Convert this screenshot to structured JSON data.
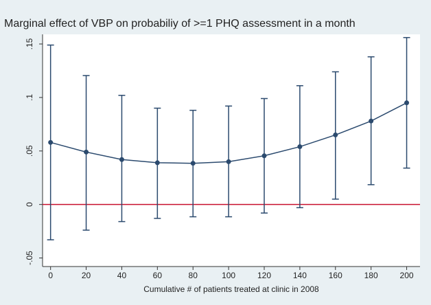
{
  "chart_data": {
    "type": "errorbar_line",
    "title": "Marginal effect of VBP on probabiliy of >=1 PHQ assessment in a month",
    "x_label": "Cumulative # of patients treated at clinic in 2008",
    "x": [
      0,
      20,
      40,
      60,
      80,
      100,
      120,
      140,
      160,
      180,
      200
    ],
    "series": [
      {
        "color": "#2b4a6e",
        "values": [
          0.058,
          0.049,
          0.042,
          0.039,
          0.0385,
          0.04,
          0.0455,
          0.054,
          0.065,
          0.078,
          0.095
        ],
        "lower": [
          -0.033,
          -0.024,
          -0.016,
          -0.013,
          -0.0115,
          -0.0115,
          -0.008,
          -0.003,
          0.005,
          0.0185,
          0.034
        ],
        "upper": [
          0.149,
          0.1205,
          0.102,
          0.09,
          0.088,
          0.092,
          0.099,
          0.111,
          0.124,
          0.138,
          0.156
        ]
      }
    ],
    "reference_line": {
      "value": 0,
      "color": "#c8102e"
    },
    "xlim": [
      -4.5,
      207.5
    ],
    "xticks": [
      0,
      20,
      40,
      60,
      80,
      100,
      120,
      140,
      160,
      180,
      200
    ],
    "ylim": [
      -0.058,
      0.159
    ],
    "yticks": [
      {
        "value": -0.05,
        "label": "-.05"
      },
      0,
      {
        "value": 0.05,
        "label": ".05"
      },
      {
        "value": 0.1,
        "label": ".1"
      },
      {
        "value": 0.15,
        "label": ".15"
      }
    ]
  }
}
